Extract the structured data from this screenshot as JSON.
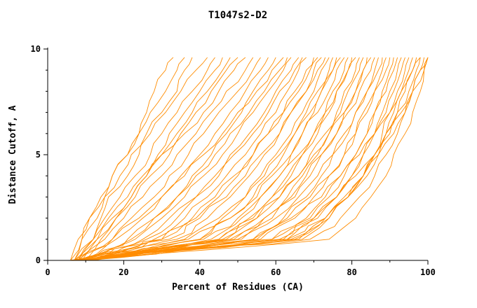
{
  "chart_data": {
    "type": "line",
    "title": "T1047s2-D2",
    "xlabel": "Percent of Residues (CA)",
    "ylabel": "Distance Cutoff, A",
    "xlim": [
      0,
      100
    ],
    "ylim": [
      0,
      10
    ],
    "x_ticks": [
      0,
      20,
      40,
      60,
      80,
      100
    ],
    "x_minor_step": 10,
    "y_ticks": [
      0,
      5,
      10
    ],
    "y_minor_step": 1,
    "grid": false,
    "legend": "none",
    "line_color": "#FF8C00",
    "encoding": "each series is the x-values (percent of residues) sampled at the shared y_levels (distance cutoff, angstrom)",
    "y_levels": [
      0,
      1,
      2,
      3,
      4,
      5,
      6,
      7,
      8,
      9,
      9.6
    ],
    "series": [
      [
        7,
        9,
        13,
        15,
        17,
        21,
        24,
        26,
        28,
        31,
        33
      ],
      [
        8,
        12,
        14,
        16,
        21,
        24,
        26,
        30,
        34,
        36,
        38
      ],
      [
        6,
        8,
        11,
        15,
        19,
        22,
        27,
        31,
        35,
        39,
        42
      ],
      [
        7,
        12,
        16,
        21,
        25,
        29,
        32,
        36,
        40,
        44,
        46
      ],
      [
        9,
        13,
        17,
        22,
        26,
        30,
        35,
        39,
        43,
        47,
        50
      ],
      [
        8,
        15,
        20,
        25,
        30,
        34,
        39,
        43,
        47,
        52,
        54
      ],
      [
        6,
        9,
        11,
        14,
        17,
        21,
        24,
        27,
        31,
        34,
        36
      ],
      [
        8,
        12,
        15,
        19,
        23,
        27,
        30,
        34,
        38,
        42,
        44
      ],
      [
        10,
        14,
        18,
        22,
        26,
        30,
        34,
        38,
        42,
        46,
        48
      ],
      [
        7,
        13,
        18,
        23,
        27,
        32,
        36,
        41,
        45,
        49,
        52
      ],
      [
        8,
        18,
        25,
        30,
        35,
        40,
        44,
        48,
        52,
        56,
        58
      ],
      [
        10,
        21,
        28,
        34,
        38,
        43,
        47,
        51,
        54,
        58,
        60
      ],
      [
        7,
        17,
        24,
        30,
        36,
        41,
        46,
        50,
        55,
        59,
        62
      ],
      [
        9,
        23,
        30,
        36,
        41,
        46,
        50,
        54,
        58,
        62,
        64
      ],
      [
        8,
        25,
        32,
        39,
        44,
        48,
        53,
        57,
        60,
        64,
        66
      ],
      [
        10,
        28,
        36,
        42,
        47,
        52,
        56,
        60,
        63,
        66,
        68
      ],
      [
        9,
        17,
        22,
        28,
        32,
        37,
        41,
        45,
        50,
        54,
        56
      ],
      [
        11,
        22,
        28,
        34,
        39,
        44,
        48,
        53,
        57,
        61,
        63
      ],
      [
        12,
        26,
        34,
        39,
        45,
        49,
        54,
        58,
        61,
        65,
        67
      ],
      [
        10,
        30,
        38,
        44,
        49,
        54,
        58,
        62,
        66,
        69,
        71
      ],
      [
        8,
        32,
        40,
        47,
        52,
        56,
        61,
        64,
        68,
        71,
        73
      ],
      [
        9,
        36,
        45,
        52,
        57,
        61,
        65,
        69,
        72,
        75,
        77
      ],
      [
        11,
        41,
        50,
        56,
        61,
        66,
        70,
        73,
        76,
        79,
        81
      ],
      [
        10,
        45,
        55,
        61,
        66,
        70,
        74,
        78,
        81,
        83,
        85
      ],
      [
        8,
        30,
        39,
        45,
        50,
        54,
        58,
        62,
        65,
        68,
        70
      ],
      [
        9,
        34,
        42,
        48,
        53,
        57,
        61,
        64,
        68,
        70,
        72
      ],
      [
        7,
        37,
        46,
        52,
        56,
        60,
        64,
        67,
        70,
        72,
        74
      ],
      [
        10,
        43,
        51,
        56,
        61,
        64,
        67,
        70,
        72,
        75,
        76
      ],
      [
        8,
        40,
        48,
        55,
        59,
        64,
        67,
        71,
        74,
        76,
        78
      ],
      [
        9,
        45,
        53,
        59,
        64,
        67,
        71,
        74,
        76,
        79,
        80
      ],
      [
        7,
        47,
        55,
        61,
        66,
        69,
        73,
        76,
        78,
        81,
        82
      ],
      [
        8,
        51,
        59,
        65,
        69,
        72,
        76,
        78,
        81,
        83,
        84
      ],
      [
        10,
        48,
        57,
        64,
        68,
        72,
        76,
        79,
        82,
        85,
        86
      ],
      [
        6,
        50,
        60,
        66,
        71,
        75,
        78,
        81,
        84,
        87,
        88
      ],
      [
        8,
        55,
        63,
        69,
        74,
        78,
        81,
        84,
        86,
        89,
        90
      ],
      [
        9,
        59,
        68,
        73,
        77,
        81,
        84,
        86,
        89,
        91,
        92
      ],
      [
        7,
        62,
        70,
        76,
        80,
        83,
        86,
        89,
        91,
        93,
        94
      ],
      [
        8,
        66,
        74,
        79,
        83,
        86,
        89,
        91,
        93,
        95,
        96
      ],
      [
        6,
        64,
        73,
        79,
        83,
        87,
        90,
        92,
        95,
        97,
        98
      ],
      [
        7,
        63,
        73,
        79,
        84,
        87,
        91,
        94,
        96,
        99,
        100
      ],
      [
        9,
        74,
        81,
        85,
        89,
        91,
        94,
        96,
        98,
        99,
        100
      ],
      [
        11,
        40,
        48,
        54,
        58,
        62,
        65,
        68,
        71,
        74,
        75
      ],
      [
        12,
        46,
        54,
        59,
        63,
        67,
        70,
        73,
        75,
        78,
        79
      ],
      [
        10,
        49,
        57,
        63,
        67,
        71,
        74,
        77,
        79,
        82,
        83
      ],
      [
        11,
        54,
        62,
        68,
        72,
        75,
        79,
        81,
        84,
        86,
        87
      ],
      [
        9,
        56,
        65,
        70,
        74,
        78,
        81,
        83,
        86,
        88,
        89
      ],
      [
        10,
        61,
        69,
        74,
        78,
        81,
        84,
        86,
        88,
        90,
        91
      ],
      [
        8,
        63,
        71,
        76,
        80,
        83,
        86,
        88,
        90,
        92,
        93
      ],
      [
        7,
        67,
        74,
        79,
        83,
        86,
        88,
        90,
        92,
        94,
        95
      ],
      [
        8,
        65,
        73,
        78,
        83,
        86,
        89,
        92,
        94,
        96,
        97
      ],
      [
        10,
        69,
        77,
        82,
        86,
        89,
        92,
        94,
        96,
        98,
        99
      ],
      [
        6,
        59,
        70,
        76,
        81,
        86,
        89,
        93,
        96,
        98,
        100
      ],
      [
        9,
        54,
        64,
        72,
        77,
        82,
        86,
        90,
        93,
        96,
        98
      ]
    ]
  }
}
